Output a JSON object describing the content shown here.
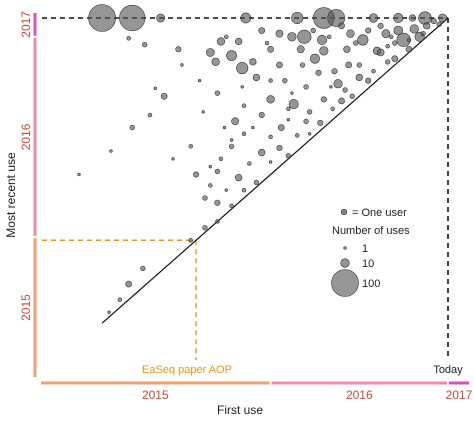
{
  "chart_data": {
    "type": "scatter",
    "xlabel": "First use",
    "ylabel": "Most recent use",
    "xlim": [
      2014.7,
      2017.2
    ],
    "ylim": [
      2014.7,
      2017.2
    ],
    "x_year_bands": [
      {
        "label": "2015",
        "start": 2014.7,
        "end": 2016.0,
        "color": "#f0a070"
      },
      {
        "label": "2016",
        "start": 2016.0,
        "end": 2017.0,
        "color": "#f08aa8"
      },
      {
        "label": "2017",
        "start": 2017.0,
        "end": 2017.2,
        "color": "#d94fc4"
      }
    ],
    "y_year_bands": [
      {
        "label": "2015",
        "start": 2014.7,
        "end": 2015.6,
        "color": "#f0a070"
      },
      {
        "label": "2016",
        "start": 2015.6,
        "end": 2016.88,
        "color": "#f08aa8"
      },
      {
        "label": "2017",
        "start": 2016.88,
        "end": 2017.2,
        "color": "#d94fc4"
      }
    ],
    "annotations": {
      "today_label": "Today",
      "today_value": 2017.0,
      "aop_label": "EaSeq paper AOP",
      "aop_value": 2015.58
    },
    "legend": {
      "position": "right",
      "user_symbol_label": "= One user",
      "title": "Number of uses",
      "entries": [
        {
          "label": "1",
          "value": 1
        },
        {
          "label": "10",
          "value": 10
        },
        {
          "label": "100",
          "value": 100
        }
      ]
    },
    "point_color": "#555555",
    "series": [
      {
        "points": [
          [
            2015.05,
            2017.0,
            100
          ],
          [
            2015.22,
            2017.0,
            90
          ],
          [
            2015.38,
            2017.0,
            9
          ],
          [
            2015.86,
            2017.0,
            14
          ],
          [
            2016.15,
            2017.0,
            18
          ],
          [
            2016.3,
            2017.0,
            60
          ],
          [
            2016.37,
            2017.0,
            40
          ],
          [
            2016.58,
            2017.0,
            10
          ],
          [
            2016.72,
            2017.0,
            12
          ],
          [
            2016.87,
            2017.0,
            22
          ],
          [
            2016.97,
            2017.0,
            9
          ],
          [
            2016.8,
            2017.0,
            6
          ],
          [
            2015.2,
            2016.87,
            2
          ],
          [
            2015.29,
            2016.83,
            3
          ],
          [
            2015.72,
            2016.85,
            8
          ],
          [
            2015.82,
            2016.85,
            6
          ],
          [
            2015.95,
            2016.92,
            5
          ],
          [
            2016.05,
            2016.9,
            7
          ],
          [
            2016.12,
            2016.88,
            10
          ],
          [
            2016.19,
            2016.88,
            25
          ],
          [
            2016.29,
            2016.86,
            12
          ],
          [
            2016.45,
            2016.9,
            8
          ],
          [
            2016.52,
            2016.86,
            15
          ],
          [
            2016.65,
            2016.9,
            9
          ],
          [
            2016.72,
            2016.92,
            11
          ],
          [
            2016.81,
            2016.93,
            10
          ],
          [
            2016.88,
            2016.95,
            6
          ],
          [
            2015.48,
            2016.8,
            4
          ],
          [
            2015.66,
            2016.78,
            9
          ],
          [
            2015.78,
            2016.76,
            14
          ],
          [
            2016.0,
            2016.8,
            5
          ],
          [
            2016.17,
            2016.8,
            7
          ],
          [
            2016.3,
            2016.79,
            10
          ],
          [
            2016.43,
            2016.8,
            6
          ],
          [
            2016.6,
            2016.79,
            8
          ],
          [
            2016.75,
            2016.86,
            25
          ],
          [
            2016.84,
            2016.88,
            12
          ],
          [
            2015.69,
            2016.72,
            8
          ],
          [
            2015.84,
            2016.68,
            18
          ],
          [
            2015.9,
            2016.72,
            6
          ],
          [
            2016.05,
            2016.7,
            5
          ],
          [
            2016.25,
            2016.74,
            12
          ],
          [
            2016.44,
            2016.7,
            5
          ],
          [
            2016.62,
            2016.78,
            7
          ],
          [
            2016.7,
            2016.74,
            5
          ],
          [
            2016.78,
            2016.8,
            5
          ],
          [
            2015.6,
            2016.6,
            1
          ],
          [
            2015.92,
            2016.62,
            6
          ],
          [
            2016.08,
            2016.6,
            3
          ],
          [
            2016.27,
            2016.65,
            4
          ],
          [
            2016.38,
            2016.58,
            10
          ],
          [
            2016.5,
            2016.62,
            6
          ],
          [
            2016.55,
            2016.6,
            4
          ],
          [
            2015.4,
            2016.5,
            5
          ],
          [
            2015.7,
            2016.52,
            3
          ],
          [
            2016.0,
            2016.48,
            8
          ],
          [
            2016.13,
            2016.45,
            12
          ],
          [
            2016.3,
            2016.48,
            4
          ],
          [
            2016.4,
            2016.47,
            5
          ],
          [
            2016.46,
            2016.5,
            3
          ],
          [
            2015.22,
            2016.3,
            3
          ],
          [
            2015.32,
            2016.38,
            2
          ],
          [
            2015.8,
            2016.34,
            7
          ],
          [
            2015.95,
            2016.38,
            4
          ],
          [
            2016.06,
            2016.3,
            5
          ],
          [
            2016.2,
            2016.34,
            3
          ],
          [
            2016.28,
            2016.33,
            4
          ],
          [
            2015.1,
            2016.15,
            1
          ],
          [
            2015.55,
            2016.18,
            2
          ],
          [
            2015.78,
            2016.18,
            3
          ],
          [
            2015.95,
            2016.14,
            6
          ],
          [
            2016.05,
            2016.17,
            4
          ],
          [
            2016.1,
            2016.12,
            3
          ],
          [
            2014.92,
            2016.0,
            1
          ],
          [
            2015.58,
            2016.0,
            4
          ],
          [
            2015.7,
            2016.02,
            3
          ],
          [
            2015.82,
            2015.98,
            6
          ],
          [
            2015.92,
            2015.95,
            3
          ],
          [
            2015.63,
            2015.85,
            3
          ],
          [
            2015.7,
            2015.82,
            4
          ],
          [
            2015.78,
            2015.8,
            2
          ],
          [
            2015.7,
            2015.7,
            2
          ],
          [
            2015.63,
            2015.66,
            3
          ],
          [
            2015.55,
            2015.58,
            2
          ],
          [
            2015.28,
            2015.4,
            3
          ],
          [
            2015.2,
            2015.3,
            5
          ],
          [
            2015.15,
            2015.2,
            2
          ],
          [
            2015.09,
            2015.12,
            1
          ],
          [
            2016.62,
            2016.95,
            4
          ],
          [
            2016.55,
            2016.92,
            4
          ],
          [
            2016.4,
            2016.95,
            5
          ],
          [
            2016.92,
            2016.98,
            4
          ],
          [
            2016.95,
            2016.96,
            3
          ],
          [
            2016.18,
            2016.7,
            3
          ],
          [
            2016.36,
            2016.66,
            4
          ],
          [
            2016.5,
            2016.7,
            3
          ],
          [
            2016.66,
            2016.72,
            3
          ],
          [
            2016.0,
            2016.6,
            2
          ],
          [
            2016.2,
            2016.56,
            3
          ],
          [
            2016.42,
            2016.54,
            3
          ],
          [
            2016.58,
            2016.66,
            2
          ],
          [
            2015.85,
            2016.44,
            2
          ],
          [
            2016.1,
            2016.42,
            2
          ],
          [
            2016.22,
            2016.4,
            3
          ],
          [
            2016.35,
            2016.42,
            2
          ],
          [
            2015.85,
            2016.26,
            2
          ],
          [
            2016.0,
            2016.24,
            2
          ],
          [
            2016.15,
            2016.25,
            2
          ],
          [
            2016.22,
            2016.26,
            1
          ],
          [
            2015.72,
            2016.1,
            2
          ],
          [
            2015.88,
            2016.07,
            2
          ],
          [
            2016.0,
            2016.08,
            1
          ],
          [
            2015.66,
            2015.93,
            2
          ],
          [
            2015.75,
            2015.9,
            1
          ],
          [
            2015.85,
            2015.9,
            2
          ],
          [
            2016.7,
            2016.84,
            3
          ],
          [
            2016.78,
            2016.86,
            2
          ],
          [
            2016.86,
            2016.9,
            3
          ],
          [
            2016.66,
            2016.82,
            2
          ],
          [
            2015.75,
            2016.88,
            2
          ],
          [
            2015.98,
            2016.84,
            2
          ],
          [
            2016.24,
            2016.92,
            3
          ],
          [
            2016.33,
            2016.88,
            2
          ],
          [
            2016.48,
            2016.84,
            3
          ],
          [
            2016.68,
            2016.88,
            2
          ],
          [
            2015.84,
            2016.56,
            1
          ],
          [
            2016.12,
            2016.52,
            1
          ],
          [
            2016.34,
            2016.56,
            1
          ],
          [
            2015.9,
            2016.3,
            1
          ],
          [
            2016.1,
            2016.35,
            1
          ],
          [
            2015.78,
            2016.22,
            1
          ],
          [
            2015.5,
            2016.7,
            1
          ],
          [
            2015.35,
            2016.55,
            1
          ],
          [
            2015.62,
            2016.4,
            1
          ],
          [
            2015.74,
            2016.3,
            1
          ],
          [
            2015.45,
            2016.1,
            1
          ],
          [
            2015.66,
            2016.05,
            1
          ]
        ]
      }
    ]
  }
}
